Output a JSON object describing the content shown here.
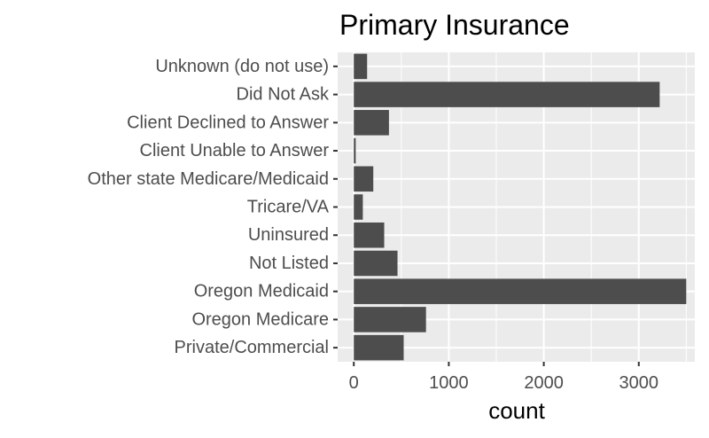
{
  "chart_data": {
    "type": "bar",
    "orientation": "horizontal",
    "title": "Primary Insurance",
    "xlabel": "count",
    "ylabel": "",
    "categories": [
      "Unknown (do not use)",
      "Did Not Ask",
      "Client Declined to Answer",
      "Client Unable to Answer",
      "Other state Medicare/Medicaid",
      "Tricare/VA",
      "Uninsured",
      "Not Listed",
      "Oregon Medicaid",
      "Oregon Medicare",
      "Private/Commercial"
    ],
    "values": [
      140,
      3220,
      370,
      20,
      205,
      95,
      320,
      460,
      3500,
      760,
      525
    ],
    "xlim": [
      -170,
      3590
    ],
    "xticks": [
      0,
      1000,
      2000,
      3000
    ],
    "grid": true,
    "legend": "none",
    "colors": {
      "panel_background": "#ebebeb",
      "grid_line": "#ffffff",
      "bar_fill": "#4d4d4d",
      "tick_text": "#4d4d4d",
      "title_text": "#000000"
    }
  }
}
